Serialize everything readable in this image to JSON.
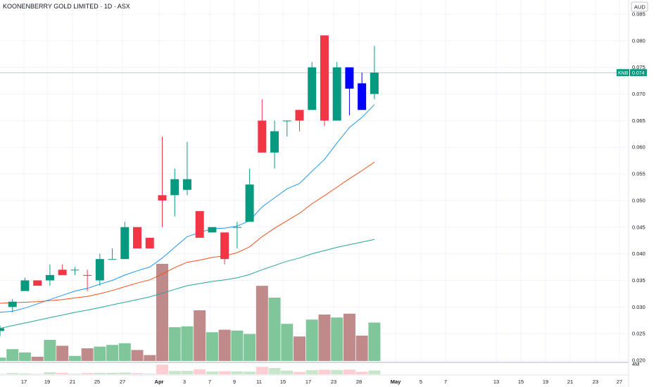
{
  "header": {
    "title": "KOONENBERRY GOLD LIMITED · 1D · ASX",
    "currency": "AUD"
  },
  "price_tag": {
    "symbol": "KNB",
    "value": "0.074"
  },
  "volume_axis_label": "4M",
  "colors": {
    "up": "#089981",
    "down": "#f23645",
    "blue": "#0000ff",
    "ma_fast": "#2196f3",
    "ma_mid": "#f4511e",
    "ma_slow": "#26a69a",
    "vol_up": "#7fc79a",
    "vol_down": "#c08a8a",
    "price_line": "#64b5ad"
  },
  "chart_data": {
    "type": "candlestick",
    "y_axis": {
      "ticks": [
        "0.085",
        "0.080",
        "0.075",
        "0.070",
        "0.065",
        "0.060",
        "0.055",
        "0.050",
        "0.045",
        "0.040",
        "0.035",
        "0.030",
        "0.025",
        "0.020"
      ],
      "ylim": [
        0.02,
        0.086
      ]
    },
    "x_axis": {
      "ticks": [
        "17",
        "19",
        "21",
        "25",
        "27",
        "Apr",
        "3",
        "7",
        "9",
        "11",
        "15",
        "17",
        "23",
        "28",
        "May",
        "5",
        "7",
        "13",
        "15",
        "19",
        "21",
        "23",
        "27"
      ]
    },
    "candles": [
      {
        "o": 0.0255,
        "h": 0.0265,
        "l": 0.0245,
        "c": 0.026,
        "color": "up"
      },
      {
        "o": 0.03,
        "h": 0.0315,
        "l": 0.029,
        "c": 0.031,
        "color": "up"
      },
      {
        "o": 0.033,
        "h": 0.0355,
        "l": 0.033,
        "c": 0.035,
        "color": "up"
      },
      {
        "o": 0.034,
        "h": 0.035,
        "l": 0.034,
        "c": 0.035,
        "color": "down"
      },
      {
        "o": 0.035,
        "h": 0.038,
        "l": 0.034,
        "c": 0.036,
        "color": "up"
      },
      {
        "o": 0.037,
        "h": 0.038,
        "l": 0.036,
        "c": 0.036,
        "color": "down"
      },
      {
        "o": 0.037,
        "h": 0.0375,
        "l": 0.036,
        "c": 0.037,
        "color": "up"
      },
      {
        "o": 0.036,
        "h": 0.037,
        "l": 0.033,
        "c": 0.036,
        "color": "down"
      },
      {
        "o": 0.035,
        "h": 0.04,
        "l": 0.034,
        "c": 0.039,
        "color": "up"
      },
      {
        "o": 0.039,
        "h": 0.041,
        "l": 0.039,
        "c": 0.039,
        "color": "up"
      },
      {
        "o": 0.039,
        "h": 0.046,
        "l": 0.039,
        "c": 0.045,
        "color": "up"
      },
      {
        "o": 0.045,
        "h": 0.045,
        "l": 0.041,
        "c": 0.041,
        "color": "down"
      },
      {
        "o": 0.043,
        "h": 0.043,
        "l": 0.041,
        "c": 0.041,
        "color": "down"
      },
      {
        "o": 0.051,
        "h": 0.062,
        "l": 0.045,
        "c": 0.05,
        "color": "down"
      },
      {
        "o": 0.051,
        "h": 0.056,
        "l": 0.047,
        "c": 0.054,
        "color": "up"
      },
      {
        "o": 0.052,
        "h": 0.061,
        "l": 0.051,
        "c": 0.054,
        "color": "up"
      },
      {
        "o": 0.048,
        "h": 0.048,
        "l": 0.043,
        "c": 0.043,
        "color": "down"
      },
      {
        "o": 0.044,
        "h": 0.045,
        "l": 0.044,
        "c": 0.045,
        "color": "up"
      },
      {
        "o": 0.044,
        "h": 0.044,
        "l": 0.038,
        "c": 0.039,
        "color": "down"
      },
      {
        "o": 0.045,
        "h": 0.046,
        "l": 0.041,
        "c": 0.045,
        "color": "up"
      },
      {
        "o": 0.046,
        "h": 0.056,
        "l": 0.046,
        "c": 0.053,
        "color": "up"
      },
      {
        "o": 0.065,
        "h": 0.069,
        "l": 0.059,
        "c": 0.059,
        "color": "down"
      },
      {
        "o": 0.059,
        "h": 0.065,
        "l": 0.056,
        "c": 0.063,
        "color": "up"
      },
      {
        "o": 0.065,
        "h": 0.065,
        "l": 0.062,
        "c": 0.065,
        "color": "up"
      },
      {
        "o": 0.067,
        "h": 0.067,
        "l": 0.063,
        "c": 0.065,
        "color": "down"
      },
      {
        "o": 0.067,
        "h": 0.076,
        "l": 0.067,
        "c": 0.075,
        "color": "up"
      },
      {
        "o": 0.081,
        "h": 0.081,
        "l": 0.064,
        "c": 0.065,
        "color": "down"
      },
      {
        "o": 0.065,
        "h": 0.076,
        "l": 0.065,
        "c": 0.075,
        "color": "up"
      },
      {
        "o": 0.075,
        "h": 0.075,
        "l": 0.066,
        "c": 0.071,
        "color": "blue"
      },
      {
        "o": 0.072,
        "h": 0.074,
        "l": 0.067,
        "c": 0.067,
        "color": "blue"
      },
      {
        "o": 0.07,
        "h": 0.079,
        "l": 0.069,
        "c": 0.074,
        "color": "up"
      }
    ],
    "volume_relative": [
      0.08,
      0.28,
      0.2,
      0.1,
      0.5,
      0.36,
      0.12,
      0.3,
      0.34,
      0.38,
      0.42,
      0.26,
      0.14,
      2.3,
      0.8,
      0.82,
      1.2,
      0.68,
      0.74,
      0.72,
      0.64,
      1.78,
      1.5,
      0.88,
      0.58,
      0.98,
      1.1,
      1.03,
      1.12,
      0.6,
      0.91
    ],
    "moving_averages": [
      {
        "color": "ma_fast",
        "values": [
          0.029,
          0.0292,
          0.0298,
          0.0306,
          0.0314,
          0.0322,
          0.033,
          0.0335,
          0.0343,
          0.035,
          0.036,
          0.0368,
          0.0375,
          0.0392,
          0.0412,
          0.0432,
          0.044,
          0.0447,
          0.0448,
          0.0452,
          0.0462,
          0.0488,
          0.0505,
          0.0522,
          0.0532,
          0.0555,
          0.0577,
          0.0608,
          0.0637,
          0.0656,
          0.068
        ]
      },
      {
        "color": "ma_mid",
        "values": [
          0.0307,
          0.0308,
          0.0309,
          0.031,
          0.0312,
          0.0314,
          0.0317,
          0.032,
          0.0325,
          0.0331,
          0.0338,
          0.0345,
          0.0351,
          0.0362,
          0.0374,
          0.0384,
          0.0388,
          0.0393,
          0.0396,
          0.0402,
          0.0413,
          0.0432,
          0.0448,
          0.0462,
          0.0476,
          0.0494,
          0.0509,
          0.0525,
          0.0541,
          0.0556,
          0.0572
        ]
      },
      {
        "color": "ma_slow",
        "values": [
          0.026,
          0.0265,
          0.027,
          0.0275,
          0.028,
          0.0285,
          0.029,
          0.0294,
          0.0299,
          0.0304,
          0.0309,
          0.0314,
          0.0319,
          0.0326,
          0.0333,
          0.034,
          0.0344,
          0.0348,
          0.0351,
          0.0355,
          0.0361,
          0.037,
          0.0378,
          0.0386,
          0.0392,
          0.04,
          0.0406,
          0.0412,
          0.0417,
          0.0422,
          0.0427
        ]
      }
    ],
    "last_price": 0.074
  }
}
